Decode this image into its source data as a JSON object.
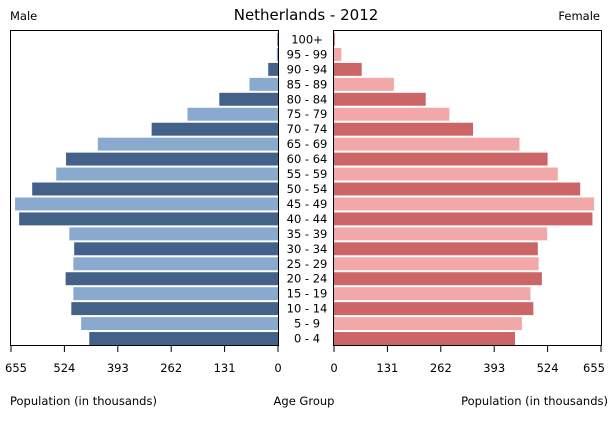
{
  "chart_data": {
    "type": "bar",
    "title": "Netherlands - 2012",
    "left_label": "Male",
    "right_label": "Female",
    "xlabel_left": "Population (in thousands)",
    "xlabel_center": "Age Group",
    "xlabel_right": "Population (in thousands)",
    "categories": [
      "100+",
      "95 - 99",
      "90 - 94",
      "85 - 89",
      "80 - 84",
      "75 - 79",
      "70 - 74",
      "65 - 69",
      "60 - 64",
      "55 - 59",
      "50 - 54",
      "45 - 49",
      "40 - 44",
      "35 - 39",
      "30 - 34",
      "25 - 29",
      "20 - 24",
      "15 - 19",
      "10 - 14",
      "5 - 9",
      "0 - 4"
    ],
    "series": [
      {
        "name": "Male",
        "color_dark": "#44618a",
        "color_light": "#8aa9ce",
        "values": [
          0.4,
          3,
          24,
          70,
          144,
          222,
          310,
          442,
          520,
          544,
          603,
          645,
          635,
          512,
          500,
          502,
          521,
          502,
          507,
          483,
          463
        ]
      },
      {
        "name": "Female",
        "color_dark": "#cc6666",
        "color_light": "#f2a8a8",
        "values": [
          2,
          18,
          68,
          147,
          225,
          283,
          341,
          455,
          524,
          549,
          604,
          638,
          634,
          523,
          500,
          502,
          510,
          482,
          489,
          461,
          444
        ]
      }
    ],
    "xlim": [
      0,
      655
    ],
    "ticks_left": [
      "655",
      "524",
      "393",
      "262",
      "131",
      "0"
    ],
    "ticks_right": [
      "0",
      "131",
      "262",
      "393",
      "524",
      "655"
    ],
    "tick_values": [
      655,
      524,
      393,
      262,
      131,
      0
    ]
  }
}
